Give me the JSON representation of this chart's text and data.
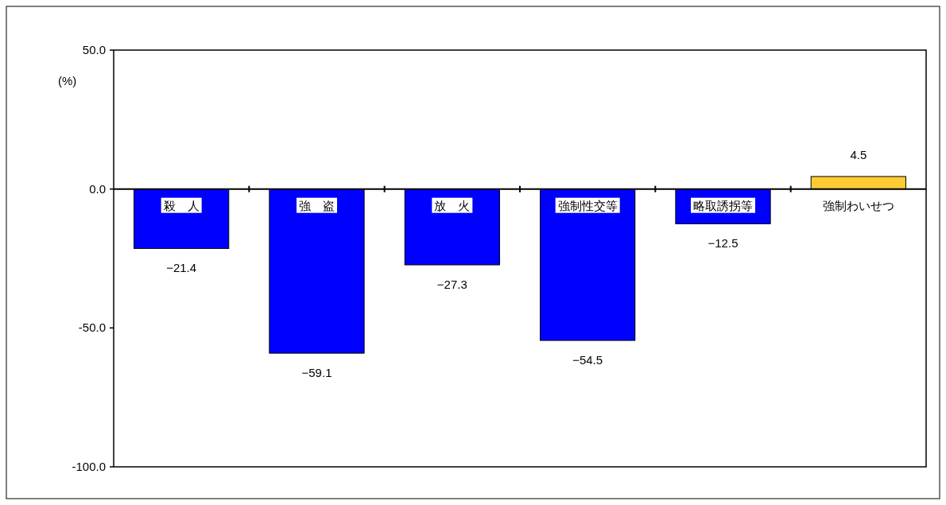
{
  "chart_data": {
    "type": "bar",
    "ylabel": "(%)",
    "categories": [
      "殺　人",
      "強　盗",
      "放　火",
      "強制性交等",
      "略取誘拐等",
      "強制わいせつ"
    ],
    "values": [
      -21.4,
      -59.1,
      -27.3,
      -54.5,
      -12.5,
      4.5
    ],
    "colors": [
      "#0000ff",
      "#0000ff",
      "#0000ff",
      "#0000ff",
      "#0000ff",
      "#ffcc33"
    ],
    "value_labels": [
      "−21.4",
      "−59.1",
      "−27.3",
      "−54.5",
      "−12.5",
      "4.5"
    ],
    "ylim": [
      -100,
      50
    ],
    "yticks": [
      {
        "value": 50,
        "label": "50.0"
      },
      {
        "value": 0,
        "label": "0.0"
      },
      {
        "value": -50,
        "label": "-50.0"
      },
      {
        "value": -100,
        "label": "-100.0"
      }
    ],
    "grid": false
  }
}
